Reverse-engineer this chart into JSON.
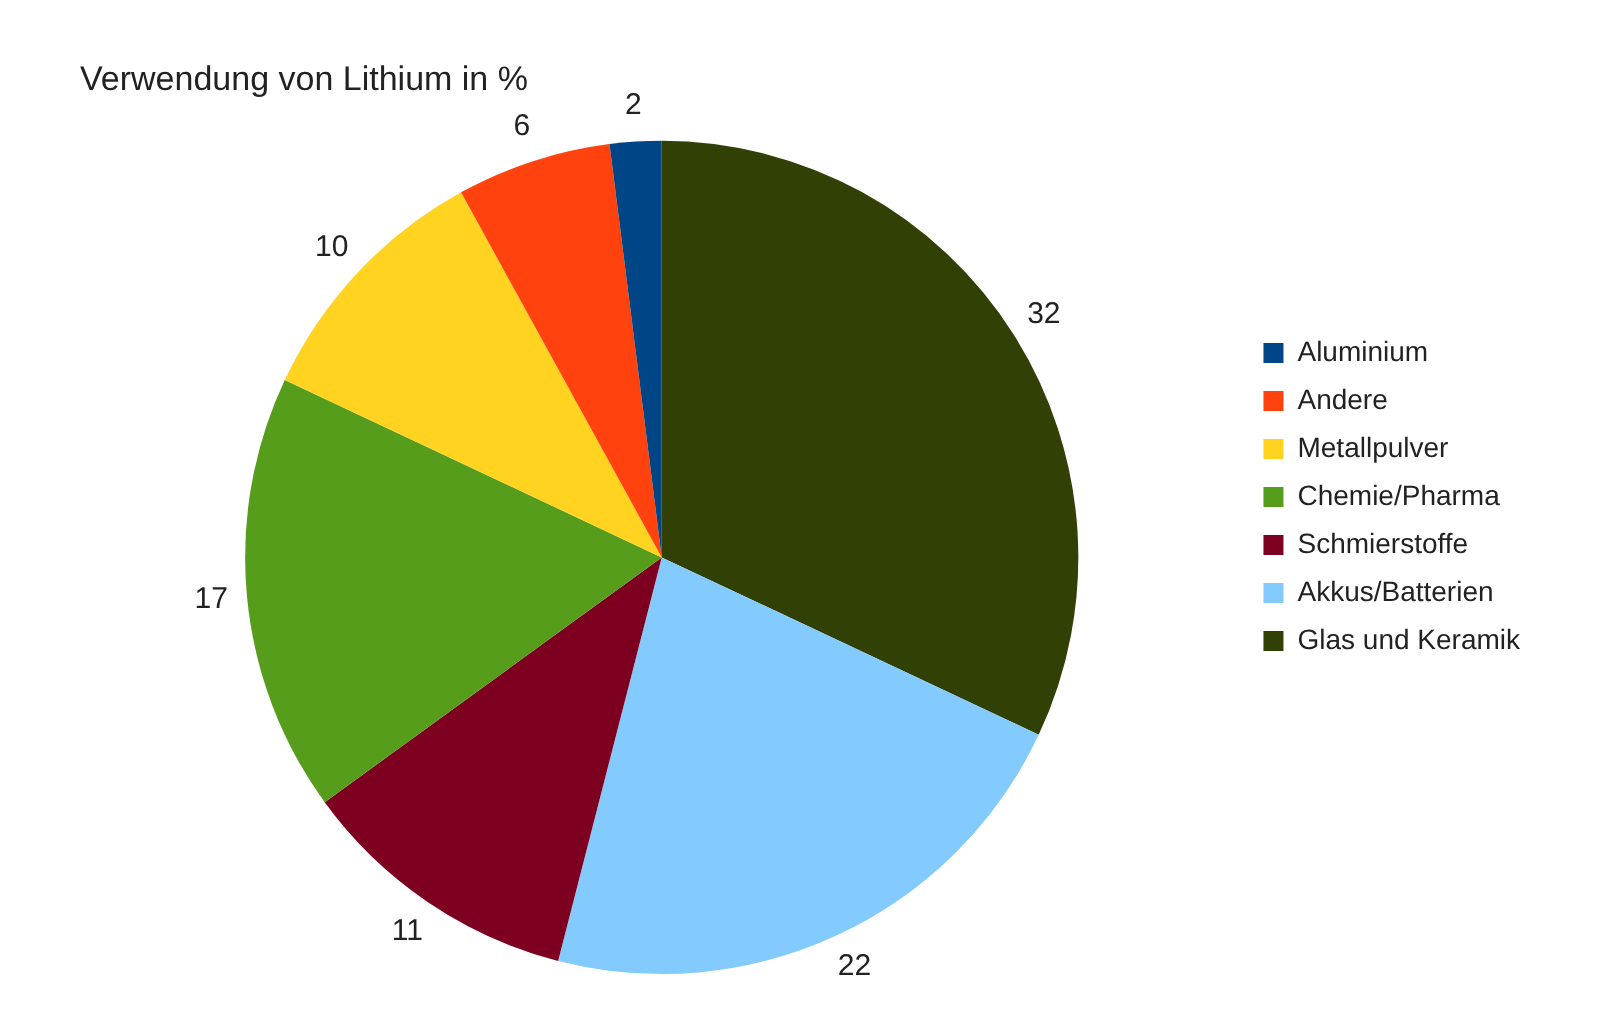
{
  "chart_data": {
    "type": "pie",
    "title": "Verwendung von Lithium in %",
    "categories": [
      "Glas und Keramik",
      "Akkus/Batterien",
      "Schmierstoffe",
      "Chemie/Pharma",
      "Metallpulver",
      "Andere",
      "Aluminium"
    ],
    "values": [
      32,
      22,
      11,
      17,
      10,
      6,
      2
    ],
    "colors": [
      "#314004",
      "#83caff",
      "#7e0021",
      "#579d1c",
      "#ffd320",
      "#ff420e",
      "#004586"
    ],
    "data_labels": true,
    "legend": "right"
  }
}
